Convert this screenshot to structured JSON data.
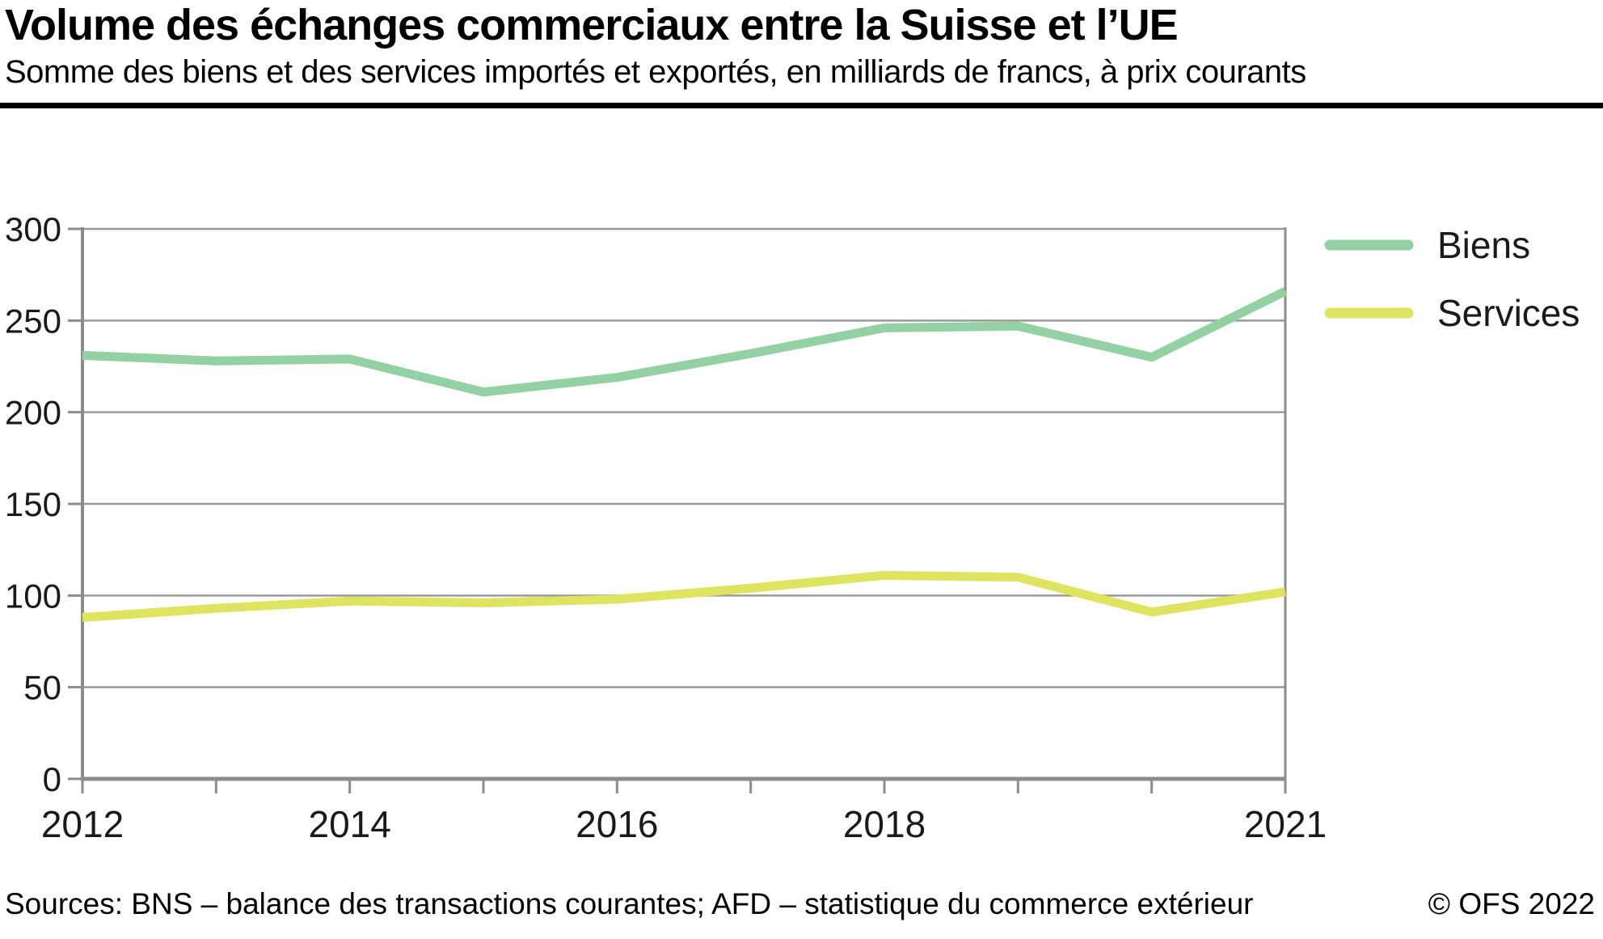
{
  "header": {
    "title": "Volume des échanges commerciaux entre la Suisse et l’UE",
    "subtitle": "Somme des biens et des services importés et exportés, en milliards de francs, à prix courants"
  },
  "footer": {
    "sources": "Sources: BNS – balance des transactions courantes; AFD – statistique du commerce extérieur",
    "copyright": "© OFS 2022"
  },
  "chart_data": {
    "type": "line",
    "title": "Volume des échanges commerciaux entre la Suisse et l’UE",
    "subtitle": "Somme des biens et des services importés et exportés, en milliards de francs, à prix courants",
    "unit": "milliards de francs, à prix courants",
    "x": [
      2012,
      2013,
      2014,
      2015,
      2016,
      2017,
      2018,
      2019,
      2020,
      2021
    ],
    "x_tick_labels": [
      2012,
      2014,
      2016,
      2018,
      2021
    ],
    "yticks": [
      0,
      50,
      100,
      150,
      200,
      250,
      300
    ],
    "ylim": [
      0,
      300
    ],
    "grid": "horizontal",
    "legend_position": "right-top",
    "grid_color": "#999999",
    "axis_color": "#8c8c8c",
    "label_color": "#1a1a1a",
    "series": [
      {
        "name": "Biens",
        "color": "#93d0a4",
        "values": [
          231,
          228,
          229,
          211,
          219,
          232,
          246,
          247,
          230,
          266
        ]
      },
      {
        "name": "Services",
        "color": "#dee45f",
        "values": [
          88,
          93,
          97,
          96,
          98,
          104,
          111,
          110,
          91,
          102
        ]
      }
    ]
  }
}
